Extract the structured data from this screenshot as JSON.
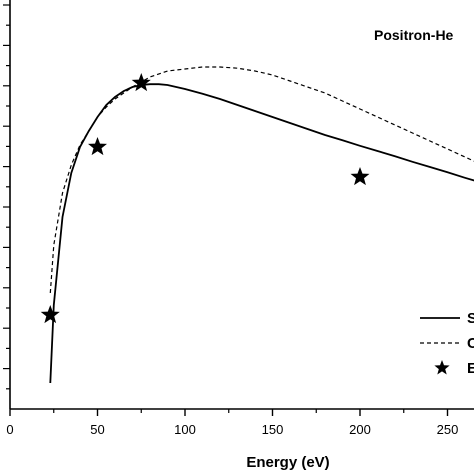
{
  "chart_data": {
    "type": "line",
    "title": "Positron-He",
    "xlabel": "Energy (eV)",
    "ylabel": "",
    "xlim": [
      0,
      270
    ],
    "ylim": [
      0,
      10
    ],
    "x_ticks": [
      0,
      50,
      100,
      150,
      200,
      250
    ],
    "grid": false,
    "legend_position": "bottom-right",
    "series": [
      {
        "name": "S",
        "style": "solid",
        "color": "#000000",
        "x": [
          23,
          25,
          30,
          35,
          40,
          45,
          50,
          55,
          60,
          65,
          70,
          75,
          80,
          85,
          90,
          100,
          110,
          120,
          130,
          140,
          150,
          160,
          170,
          180,
          190,
          200,
          210,
          220,
          230,
          240,
          250,
          260,
          270
        ],
        "y": [
          0.65,
          2.6,
          4.8,
          5.9,
          6.55,
          6.95,
          7.3,
          7.6,
          7.8,
          7.95,
          8.05,
          8.1,
          8.12,
          8.12,
          8.1,
          8.0,
          7.88,
          7.75,
          7.6,
          7.45,
          7.3,
          7.15,
          7.0,
          6.85,
          6.72,
          6.58,
          6.45,
          6.32,
          6.18,
          6.05,
          5.92,
          5.78,
          5.65
        ]
      },
      {
        "name": "C",
        "style": "dashed",
        "color": "#000000",
        "x": [
          23,
          25,
          30,
          35,
          40,
          45,
          50,
          55,
          60,
          70,
          80,
          90,
          100,
          110,
          120,
          130,
          140,
          150,
          160,
          170,
          180,
          190,
          200,
          210,
          220,
          230,
          240,
          250,
          260,
          270
        ],
        "y": [
          2.9,
          4.1,
          5.4,
          6.1,
          6.6,
          6.95,
          7.3,
          7.55,
          7.75,
          8.05,
          8.3,
          8.45,
          8.5,
          8.55,
          8.55,
          8.52,
          8.45,
          8.35,
          8.2,
          8.05,
          7.9,
          7.7,
          7.5,
          7.3,
          7.1,
          6.9,
          6.7,
          6.5,
          6.3,
          6.1
        ]
      },
      {
        "name": "E",
        "style": "star",
        "color": "#000000",
        "x": [
          23,
          50,
          75,
          200
        ],
        "y": [
          2.35,
          6.55,
          8.15,
          5.8
        ]
      }
    ]
  }
}
